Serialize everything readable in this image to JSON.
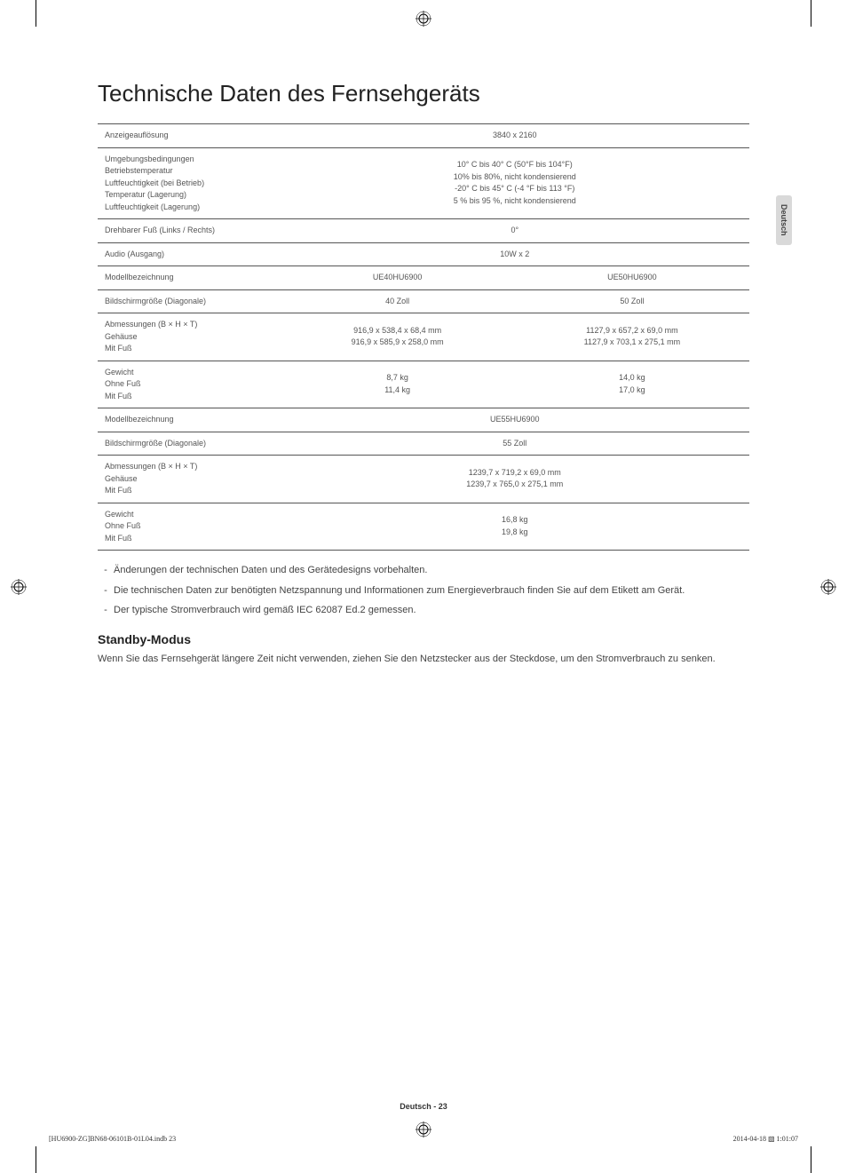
{
  "sideTab": "Deutsch",
  "title": "Technische Daten des Fernsehgeräts",
  "table": {
    "rows": [
      {
        "type": "full",
        "label": "Anzeigeauflösung",
        "value": "3840 x 2160"
      },
      {
        "type": "full",
        "label": "Umgebungsbedingungen\nBetriebstemperatur\nLuftfeuchtigkeit (bei Betrieb)\nTemperatur (Lagerung)\nLuftfeuchtigkeit (Lagerung)",
        "value": "10° C bis 40° C (50°F bis 104°F)\n10% bis 80%, nicht kondensierend\n-20° C bis 45° C (-4 °F bis 113 °F)\n5 % bis 95 %, nicht kondensierend"
      },
      {
        "type": "full",
        "label": "Drehbarer Fuß (Links / Rechts)",
        "value": "0°"
      },
      {
        "type": "full",
        "label": "Audio (Ausgang)",
        "value": "10W x 2"
      },
      {
        "type": "split",
        "label": "Modellbezeichnung",
        "left": "UE40HU6900",
        "right": "UE50HU6900"
      },
      {
        "type": "split",
        "label": "Bildschirmgröße (Diagonale)",
        "left": "40 Zoll",
        "right": "50 Zoll"
      },
      {
        "type": "split",
        "label": "Abmessungen (B × H × T)\nGehäuse\nMit Fuß",
        "left": "916,9 x 538,4 x 68,4 mm\n916,9 x 585,9 x 258,0 mm",
        "right": "1127,9 x 657,2 x 69,0 mm\n1127,9 x 703,1 x 275,1 mm"
      },
      {
        "type": "split",
        "label": "Gewicht\nOhne Fuß\nMit Fuß",
        "left": "8,7 kg\n11,4 kg",
        "right": "14,0 kg\n17,0 kg"
      },
      {
        "type": "full",
        "label": "Modellbezeichnung",
        "value": "UE55HU6900"
      },
      {
        "type": "full",
        "label": "Bildschirmgröße (Diagonale)",
        "value": "55 Zoll"
      },
      {
        "type": "full",
        "label": "Abmessungen (B × H × T)\nGehäuse\nMit Fuß",
        "value": "1239,7 x 719,2 x 69,0 mm\n1239,7 x 765,0 x 275,1 mm"
      },
      {
        "type": "full",
        "label": "Gewicht\nOhne Fuß\nMit Fuß",
        "value": "16,8 kg\n19,8 kg"
      }
    ]
  },
  "notes": [
    "Änderungen der technischen Daten und des Gerätedesigns vorbehalten.",
    "Die technischen Daten zur benötigten Netzspannung und Informationen zum Energieverbrauch finden Sie auf dem Etikett am Gerät.",
    "Der typische Stromverbrauch wird gemäß IEC 62087 Ed.2 gemessen."
  ],
  "standby": {
    "heading": "Standby-Modus",
    "text": "Wenn Sie das Fernsehgerät längere Zeit nicht verwenden, ziehen Sie den Netzstecker aus der Steckdose, um den Stromverbrauch zu senken."
  },
  "footer": {
    "center": "Deutsch - 23",
    "left": "[HU6900-ZG]BN68-06101B-01L04.indb   23",
    "right": "2014-04-18   ▧ 1:01:07"
  },
  "style": {
    "page_bg": "#ffffff",
    "text_color": "#333333",
    "muted_text": "#555555",
    "border_color": "#555555",
    "title_fontsize": 26,
    "table_fontsize": 9,
    "body_fontsize": 11,
    "h2_fontsize": 14,
    "footer_fontsize": 9,
    "small_footer_fontsize": 8,
    "tab_bg": "#d9d9d9"
  }
}
